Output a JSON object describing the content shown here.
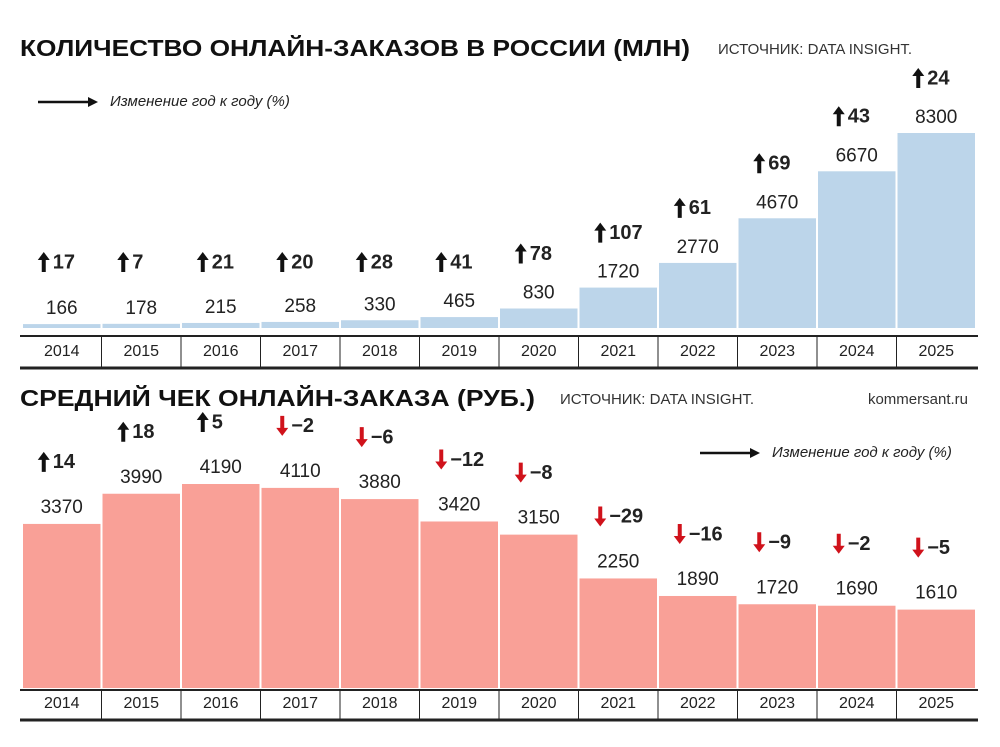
{
  "chart_data": [
    {
      "type": "bar",
      "title": "КОЛИЧЕСТВО ОНЛАЙН-ЗАКАЗОВ В РОССИИ (МЛН)",
      "source": "ИСТОЧНИК: DATA INSIGHT.",
      "categories": [
        "2014",
        "2015",
        "2016",
        "2017",
        "2018",
        "2019",
        "2020",
        "2021",
        "2022",
        "2023",
        "2024",
        "2025"
      ],
      "values": [
        166,
        178,
        215,
        258,
        330,
        465,
        830,
        1720,
        2770,
        4670,
        6670,
        8300
      ],
      "color": "#bcd5ea",
      "ylim": [
        0,
        8300
      ],
      "yoy": {
        "name": "Изменение год к году (%)",
        "values": [
          17,
          7,
          21,
          20,
          28,
          41,
          78,
          107,
          61,
          69,
          43,
          24
        ],
        "value_labels": [
          "17",
          "7",
          "21",
          "20",
          "28",
          "41",
          "78",
          "107",
          "61",
          "69",
          "43",
          "24"
        ]
      }
    },
    {
      "type": "bar",
      "title": "СРЕДНИЙ ЧЕК ОНЛАЙН-ЗАКАЗА (РУБ.)",
      "source": "ИСТОЧНИК: DATA INSIGHT.",
      "credit": "kommersant.ru",
      "categories": [
        "2014",
        "2015",
        "2016",
        "2017",
        "2018",
        "2019",
        "2020",
        "2021",
        "2022",
        "2023",
        "2024",
        "2025"
      ],
      "values": [
        3370,
        3990,
        4190,
        4110,
        3880,
        3420,
        3150,
        2250,
        1890,
        1720,
        1690,
        1610
      ],
      "color": "#f9a097",
      "ylim": [
        0,
        4190
      ],
      "yoy": {
        "name": "Изменение год к году (%)",
        "values": [
          14,
          18,
          5,
          -2,
          -6,
          -12,
          -8,
          -29,
          -16,
          -9,
          -2,
          -5
        ],
        "value_labels": [
          "14",
          "18",
          "5",
          "−2",
          "−6",
          "−12",
          "−8",
          "−29",
          "−16",
          "−9",
          "−2",
          "−5"
        ]
      }
    }
  ]
}
